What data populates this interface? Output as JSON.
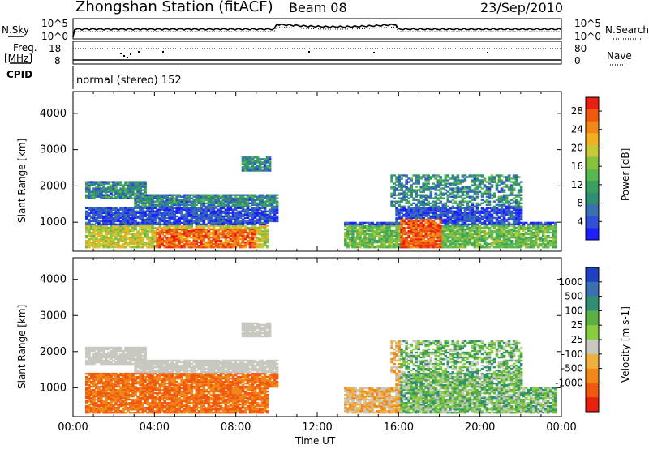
{
  "header": {
    "station": "Zhongshan Station (fitACF)",
    "beam": "Beam 08",
    "date": "23/Sep/2010"
  },
  "sky_panel": {
    "label": "N.Sky",
    "left_ticks": [
      "10^5",
      "10^0"
    ],
    "right_ticks": [
      "10^5",
      "10^0"
    ],
    "right_label": "N.Search"
  },
  "freq_panel": {
    "label_line1": "Freq.",
    "label_line2": "[MHz]",
    "left_ticks": [
      "18",
      "8"
    ],
    "right_ticks": [
      "80",
      "0"
    ],
    "right_label": "Nave"
  },
  "cpid_panel": {
    "label": "CPID",
    "mode": "normal (stereo) 152"
  },
  "chart_data": [
    {
      "type": "heatmap",
      "quantity": "power",
      "ylabel": "Slant Range [km]",
      "xlabel": "Time UT",
      "x_ticks": [
        "00:00",
        "04:00",
        "08:00",
        "12:00",
        "16:00",
        "20:00",
        "00:00"
      ],
      "xlim_hours": [
        0,
        24
      ],
      "y_ticks": [
        1000,
        2000,
        3000,
        4000
      ],
      "ylim": [
        200,
        4600
      ],
      "colorbar": {
        "label": "Power [dB]",
        "ticks": [
          4,
          8,
          12,
          16,
          20,
          24,
          28
        ],
        "range": [
          0,
          31
        ],
        "colors": [
          "#1f1fff",
          "#2f4fd8",
          "#3a6fb0",
          "#2f8f70",
          "#3aa060",
          "#58b850",
          "#88c040",
          "#c8c838",
          "#f0b020",
          "#f08818",
          "#f05810",
          "#e82010"
        ]
      }
    },
    {
      "type": "heatmap",
      "quantity": "velocity",
      "ylabel": "Slant Range [km]",
      "xlabel": "Time UT",
      "x_ticks": [
        "00:00",
        "04:00",
        "08:00",
        "12:00",
        "16:00",
        "20:00",
        "00:00"
      ],
      "xlim_hours": [
        0,
        24
      ],
      "y_ticks": [
        1000,
        2000,
        3000,
        4000
      ],
      "ylim": [
        200,
        4600
      ],
      "colorbar": {
        "label": "Velocity [m s-1]",
        "ticks": [
          1000,
          500,
          100,
          25,
          -25,
          -100,
          -500,
          -1000
        ],
        "colors": [
          "#2040c0",
          "#3a70b0",
          "#2f8f70",
          "#5ab040",
          "#88cc40",
          "#c8c8c0",
          "#f0b040",
          "#f08818",
          "#f05810",
          "#e82010"
        ]
      }
    }
  ]
}
